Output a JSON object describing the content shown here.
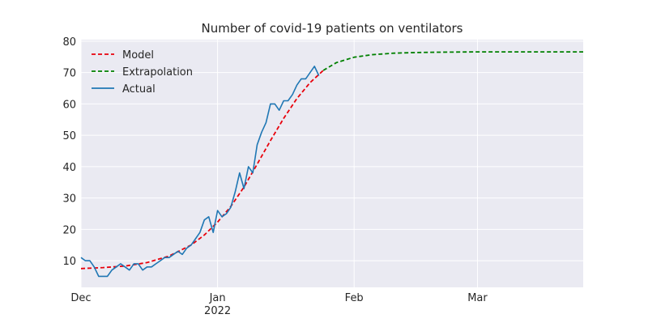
{
  "chart_data": {
    "type": "line",
    "title": "Number of covid-19 patients on ventilators",
    "xlabel": "",
    "ylabel": "",
    "x_axis": {
      "type": "date",
      "range": [
        "2021-12-01",
        "2022-03-25"
      ],
      "ticks": [
        {
          "date": "2021-12-01",
          "label": "Dec",
          "sublabel": ""
        },
        {
          "date": "2022-01-01",
          "label": "Jan",
          "sublabel": "2022"
        },
        {
          "date": "2022-02-01",
          "label": "Feb",
          "sublabel": ""
        },
        {
          "date": "2022-03-01",
          "label": "Mar",
          "sublabel": ""
        }
      ]
    },
    "ylim": [
      1.5,
      80.5
    ],
    "yticks": [
      10,
      20,
      30,
      40,
      50,
      60,
      70,
      80
    ],
    "grid": true,
    "legend_position": "top-left",
    "series": [
      {
        "name": "Model",
        "style": "dashed",
        "color": "#e8000b",
        "x": [
          "2021-12-01",
          "2021-12-06",
          "2021-12-11",
          "2021-12-16",
          "2021-12-21",
          "2021-12-26",
          "2021-12-29",
          "2022-01-01",
          "2022-01-04",
          "2022-01-07",
          "2022-01-10",
          "2022-01-13",
          "2022-01-16",
          "2022-01-19",
          "2022-01-22",
          "2022-01-25"
        ],
        "y": [
          7.5,
          7.8,
          8.3,
          9.4,
          11.5,
          15.0,
          18.2,
          22.3,
          27.3,
          33.5,
          40.8,
          48.3,
          55.4,
          61.7,
          66.8,
          70.7
        ]
      },
      {
        "name": "Extrapolation",
        "style": "dashed",
        "color": "#008000",
        "x": [
          "2022-01-25",
          "2022-01-28",
          "2022-02-01",
          "2022-02-05",
          "2022-02-10",
          "2022-02-15",
          "2022-02-20",
          "2022-03-01",
          "2022-03-10",
          "2022-03-25"
        ],
        "y": [
          70.7,
          73.2,
          74.9,
          75.7,
          76.2,
          76.4,
          76.5,
          76.6,
          76.6,
          76.6
        ]
      },
      {
        "name": "Actual",
        "style": "solid",
        "color": "#1f77b4",
        "x": [
          "2021-12-01",
          "2021-12-02",
          "2021-12-03",
          "2021-12-04",
          "2021-12-05",
          "2021-12-06",
          "2021-12-07",
          "2021-12-08",
          "2021-12-09",
          "2021-12-10",
          "2021-12-11",
          "2021-12-12",
          "2021-12-13",
          "2021-12-14",
          "2021-12-15",
          "2021-12-16",
          "2021-12-17",
          "2021-12-18",
          "2021-12-19",
          "2021-12-20",
          "2021-12-21",
          "2021-12-22",
          "2021-12-23",
          "2021-12-24",
          "2021-12-25",
          "2021-12-26",
          "2021-12-27",
          "2021-12-28",
          "2021-12-29",
          "2021-12-30",
          "2021-12-31",
          "2022-01-01",
          "2022-01-02",
          "2022-01-03",
          "2022-01-04",
          "2022-01-05",
          "2022-01-06",
          "2022-01-07",
          "2022-01-08",
          "2022-01-09",
          "2022-01-10",
          "2022-01-11",
          "2022-01-12",
          "2022-01-13",
          "2022-01-14",
          "2022-01-15",
          "2022-01-16",
          "2022-01-17",
          "2022-01-18",
          "2022-01-19",
          "2022-01-20",
          "2022-01-21",
          "2022-01-22",
          "2022-01-23",
          "2022-01-24",
          "2022-01-25",
          "2022-01-26"
        ],
        "y": [
          11,
          10,
          10,
          8,
          5,
          5,
          5,
          7,
          8,
          9,
          8,
          7,
          9,
          9,
          7,
          8,
          8,
          9,
          10,
          11,
          11,
          12,
          13,
          12,
          14,
          15,
          17,
          19,
          23,
          24,
          19,
          26,
          24,
          25,
          27,
          32,
          38,
          33,
          40,
          38,
          47,
          51,
          54,
          60,
          60,
          58,
          61,
          61,
          63,
          66,
          68,
          68,
          70,
          72,
          69,
          null,
          null
        ]
      }
    ]
  }
}
